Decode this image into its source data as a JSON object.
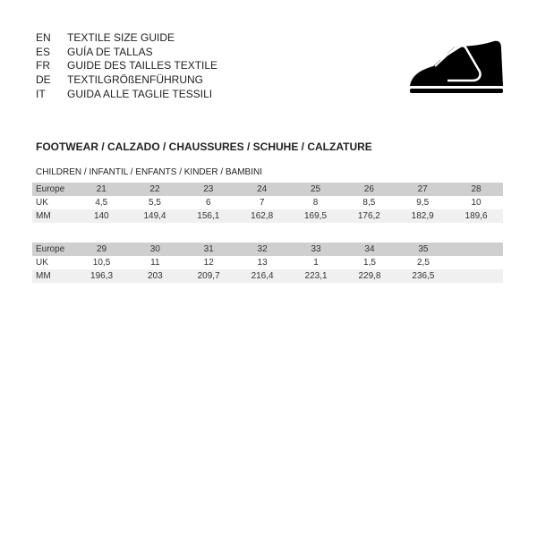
{
  "languages": [
    {
      "code": "EN",
      "label": "TEXTILE SIZE GUIDE"
    },
    {
      "code": "ES",
      "label": "GUÍA DE TALLAS"
    },
    {
      "code": "FR",
      "label": "GUIDE DES TAILLES TEXTILE"
    },
    {
      "code": "DE",
      "label": "TEXTILGRÖßENFÜHRUNG"
    },
    {
      "code": "IT",
      "label": "GUIDA ALLE TAGLIE TESSILI"
    }
  ],
  "icon": "shoe-icon",
  "section_title": "FOOTWEAR / CALZADO / CHAUSSURES / SCHUHE / CALZATURE",
  "subsection_title": "CHILDREN / INFANTIL / ENFANTS / KINDER / BAMBINI",
  "tables": [
    {
      "rows": [
        {
          "label": "Europe",
          "values": [
            "21",
            "22",
            "23",
            "24",
            "25",
            "26",
            "27",
            "28"
          ]
        },
        {
          "label": "UK",
          "values": [
            "4,5",
            "5,5",
            "6",
            "7",
            "8",
            "8,5",
            "9,5",
            "10"
          ]
        },
        {
          "label": "MM",
          "values": [
            "140",
            "149,4",
            "156,1",
            "162,8",
            "169,5",
            "176,2",
            "182,9",
            "189,6"
          ]
        }
      ]
    },
    {
      "rows": [
        {
          "label": "Europe",
          "values": [
            "29",
            "30",
            "31",
            "32",
            "33",
            "34",
            "35",
            ""
          ]
        },
        {
          "label": "UK",
          "values": [
            "10,5",
            "11",
            "12",
            "13",
            "1",
            "1,5",
            "2,5",
            ""
          ]
        },
        {
          "label": "MM",
          "values": [
            "196,3",
            "203",
            "209,7",
            "216,4",
            "223,1",
            "229,8",
            "236,5",
            ""
          ]
        }
      ]
    }
  ]
}
